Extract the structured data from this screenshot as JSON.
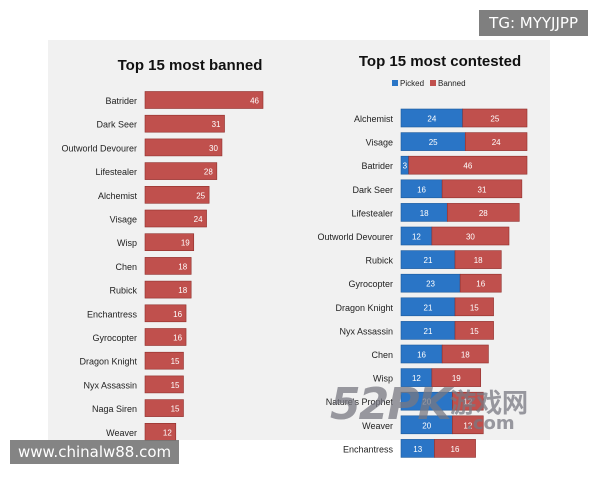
{
  "watermarks": {
    "top_right": "TG: MYYJJPP",
    "bottom_left": "www.chinalw88.com",
    "logo_text": "游戏网",
    "logo_sub": ".com"
  },
  "colors": {
    "banned": "#c0504d",
    "picked": "#2a75c6",
    "bar_stroke": "#8f2f2c",
    "panel": "#f1f1f1"
  },
  "chart_data": [
    {
      "type": "bar",
      "orientation": "horizontal",
      "title": "Top 15 most banned",
      "categories": [
        "Batrider",
        "Dark Seer",
        "Outworld Devourer",
        "Lifestealer",
        "Alchemist",
        "Visage",
        "Wisp",
        "Chen",
        "Rubick",
        "Enchantress",
        "Gyrocopter",
        "Dragon Knight",
        "Nyx Assassin",
        "Naga Siren",
        "Weaver"
      ],
      "values": [
        46,
        31,
        30,
        28,
        25,
        24,
        19,
        18,
        18,
        16,
        16,
        15,
        15,
        15,
        12
      ],
      "xlim": [
        0,
        50
      ],
      "grid": false,
      "legend": "none"
    },
    {
      "type": "bar",
      "orientation": "horizontal",
      "stacked": true,
      "title": "Top 15 most contested",
      "legend": "top-left",
      "categories": [
        "Alchemist",
        "Visage",
        "Batrider",
        "Dark Seer",
        "Lifestealer",
        "Outworld Devourer",
        "Rubick",
        "Gyrocopter",
        "Dragon Knight",
        "Nyx Assassin",
        "Chen",
        "Wisp",
        "Nature's Prophet",
        "Weaver",
        "Enchantress"
      ],
      "series": [
        {
          "name": "Picked",
          "values": [
            24,
            25,
            3,
            16,
            18,
            12,
            21,
            23,
            21,
            21,
            16,
            12,
            20,
            20,
            13
          ]
        },
        {
          "name": "Banned",
          "values": [
            25,
            24,
            46,
            31,
            28,
            30,
            18,
            16,
            15,
            15,
            18,
            19,
            12,
            12,
            16
          ]
        }
      ],
      "xlim": [
        0,
        50
      ],
      "grid": false
    }
  ]
}
